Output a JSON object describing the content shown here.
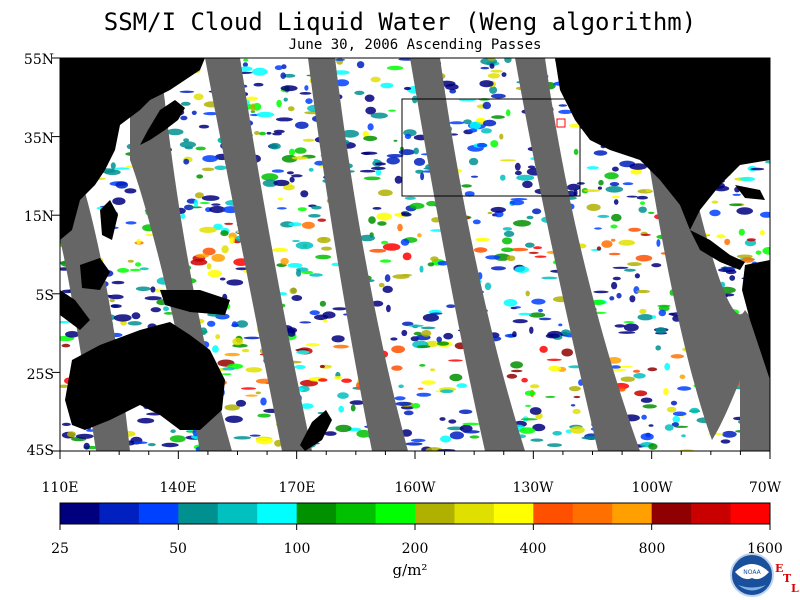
{
  "header": {
    "title": "SSM/I Cloud Liquid Water (Weng algorithm)",
    "subtitle": "June 30, 2006  Ascending Passes"
  },
  "map": {
    "latitude_labels": [
      "55N",
      "35N",
      "15N",
      "5S",
      "25S",
      "45S"
    ],
    "longitude_labels": [
      "110E",
      "140E",
      "170E",
      "160W",
      "130W",
      "100W",
      "70W"
    ],
    "colors": {
      "land": "#000000",
      "no_data_gap": "#666666",
      "background": "#ffffff"
    }
  },
  "colorbar": {
    "labels": [
      "25",
      "50",
      "100",
      "200",
      "400",
      "800",
      "1600"
    ],
    "units": "g/m²",
    "colors": [
      "#00007f",
      "#0020c0",
      "#0040ff",
      "#009090",
      "#00c0c0",
      "#00ffff",
      "#009000",
      "#00c000",
      "#00ff00",
      "#b0b000",
      "#e0e000",
      "#ffff00",
      "#ff5000",
      "#ff7000",
      "#ffa000",
      "#900000",
      "#c80000",
      "#ff0000"
    ]
  },
  "logo": {
    "text": "NOAA",
    "etl": [
      "E",
      "T",
      "L"
    ]
  }
}
